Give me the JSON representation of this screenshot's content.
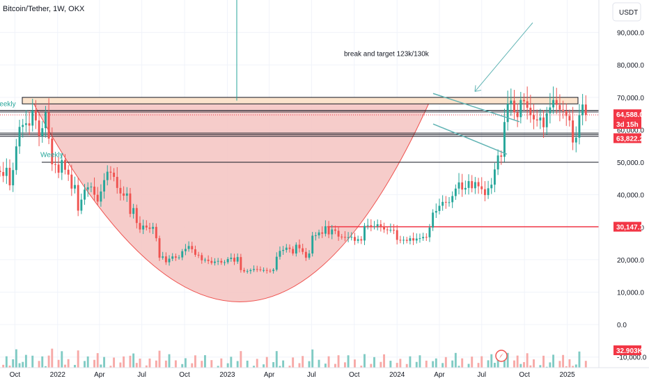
{
  "header": {
    "symbol_title": "Bitcoin/Tether, 1W, OKX",
    "currency_button": "USDT"
  },
  "annotations": {
    "target_text": "break and target 123k/130k",
    "weekly_left": "Weekly",
    "weekly_mid": "Weekly"
  },
  "price_tags": {
    "current_price": "64,588.0",
    "countdown": "3d 15h",
    "level_low": "63,822.2",
    "level_support": "30,147.1",
    "volume": "32.903K"
  },
  "colors": {
    "bull": "#26a69a",
    "bear": "#ef5350",
    "bull_volume": "#80cbc4",
    "bear_volume": "#f7a9a7",
    "cup_fill": "#f5c6c4",
    "resistance_zone": "#fbe3cc",
    "support_line": "#f23645",
    "trend_line": "#5fb3b3",
    "grid": "#f0f3fa"
  },
  "chart_data": {
    "type": "candlestick",
    "title": "Bitcoin/Tether, 1W, OKX",
    "y_unit": "USDT",
    "ylim": [
      -18000,
      100000
    ],
    "x_range": [
      "2021-08-30",
      "2025-03-10"
    ],
    "y_ticks": [
      "90,000.0",
      "80,000.0",
      "70,000.0",
      "60,000.0",
      "50,000.0",
      "40,000.0",
      "30,000.0",
      "20,000.0",
      "10,000.0",
      "0.0",
      "-10,000.0"
    ],
    "y_tick_values": [
      90000,
      80000,
      70000,
      60000,
      50000,
      40000,
      30000,
      20000,
      10000,
      0,
      -10000
    ],
    "x_ticks": [
      {
        "label": "Oct",
        "date": "2021-10-01"
      },
      {
        "label": "2022",
        "date": "2022-01-01"
      },
      {
        "label": "Apr",
        "date": "2022-04-01"
      },
      {
        "label": "Jul",
        "date": "2022-07-01"
      },
      {
        "label": "Oct",
        "date": "2022-10-01"
      },
      {
        "label": "2023",
        "date": "2023-01-01"
      },
      {
        "label": "Apr",
        "date": "2023-04-01"
      },
      {
        "label": "Jul",
        "date": "2023-07-01"
      },
      {
        "label": "Oct",
        "date": "2023-10-01"
      },
      {
        "label": "2024",
        "date": "2024-01-01"
      },
      {
        "label": "Apr",
        "date": "2024-04-01"
      },
      {
        "label": "Jul",
        "date": "2024-07-01"
      },
      {
        "label": "Oct",
        "date": "2024-10-01"
      },
      {
        "label": "2025",
        "date": "2025-01-01"
      }
    ],
    "first_candle": "2021-08-30",
    "candle_interval_days": 7,
    "closes": [
      47000,
      45800,
      48300,
      42900,
      47600,
      54900,
      60900,
      61500,
      62000,
      61300,
      66000,
      62900,
      58100,
      60500,
      65400,
      57300,
      49400,
      49300,
      46800,
      50700,
      47700,
      46200,
      41900,
      43000,
      35100,
      38500,
      41600,
      42300,
      42500,
      40000,
      37900,
      41000,
      44500,
      47100,
      46800,
      45500,
      42100,
      40400,
      39700,
      40400,
      34100,
      35900,
      31300,
      29300,
      30500,
      29900,
      29500,
      30100,
      26600,
      20600,
      21000,
      19200,
      20300,
      21000,
      20600,
      20700,
      22600,
      23300,
      24200,
      23200,
      21500,
      21400,
      19800,
      20000,
      19600,
      19000,
      19400,
      19600,
      19100,
      19200,
      20200,
      20600,
      19400,
      20800,
      16800,
      16400,
      16500,
      16800,
      17100,
      17000,
      16800,
      16800,
      16600,
      16500,
      16900,
      20900,
      22700,
      23000,
      23700,
      23300,
      21900,
      24600,
      23500,
      22400,
      20600,
      21900,
      27400,
      27500,
      28400,
      28000,
      30300,
      27800,
      29300,
      28900,
      27100,
      27000,
      26800,
      26900,
      27000,
      25800,
      26300,
      25900,
      30400,
      30600,
      30200,
      30300,
      30900,
      30300,
      29300,
      29200,
      29200,
      29100,
      26100,
      26000,
      26100,
      25800,
      26600,
      25900,
      26500,
      26600,
      27000,
      26900,
      29900,
      34500,
      35000,
      36600,
      37800,
      37700,
      37700,
      39600,
      41900,
      43800,
      41600,
      42100,
      44200,
      42000,
      43900,
      42600,
      41700,
      39900,
      42000,
      43100,
      47800,
      52100,
      51700,
      62400,
      68000,
      69000,
      65400,
      63900,
      69200,
      68800,
      66800,
      64500,
      63200,
      62900,
      63800,
      60800,
      65100,
      66900,
      69200,
      67700,
      66200,
      65800,
      64300,
      62900,
      56100,
      57600,
      64500,
      67800,
      64588
    ]
  }
}
